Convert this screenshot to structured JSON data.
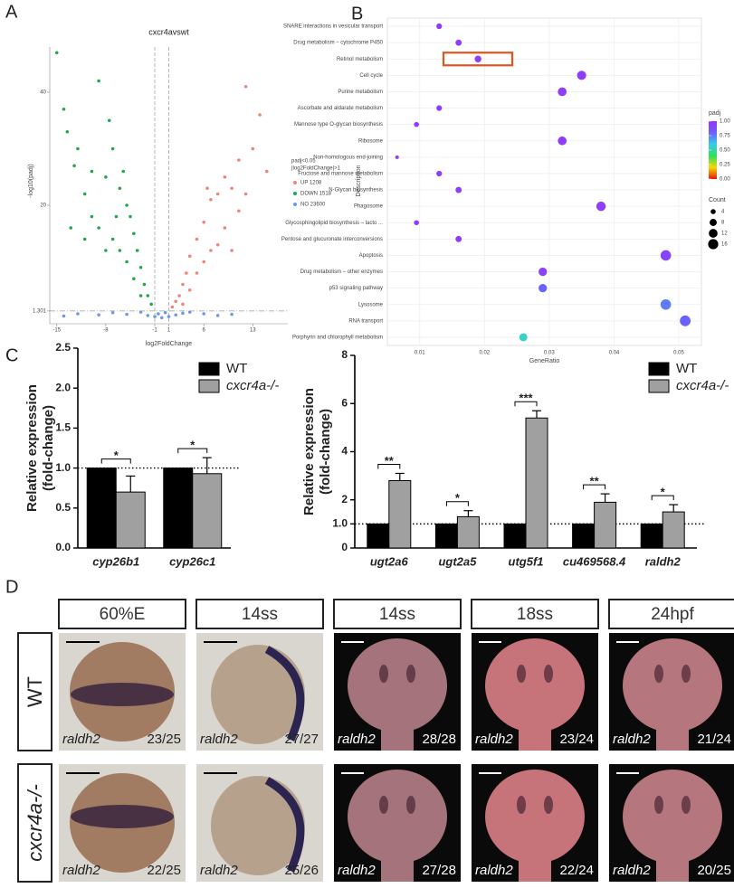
{
  "panels": [
    "A",
    "B",
    "C",
    "D"
  ],
  "chart_data": [
    {
      "type": "volcano",
      "title": "cxcr4avswt",
      "xlabel": "log2FoldChange",
      "ylabel": "-log10(padj)",
      "legend_title": [
        "padj<0.05",
        "|log2FoldChange|>1"
      ],
      "xlim": [
        -16,
        18
      ],
      "ylim": [
        0,
        48
      ],
      "xticks": [
        -15,
        -8,
        -1,
        1,
        6,
        13
      ],
      "yticks": [
        1.301,
        20,
        40
      ],
      "series": [
        {
          "name": "UP 1208",
          "color": "#f0837a",
          "x": [
            12,
            14,
            15,
            13,
            10,
            9,
            8,
            7,
            6,
            5,
            4,
            3.5,
            3,
            2.5,
            2,
            1.5,
            11,
            9,
            7,
            5,
            4,
            6,
            8,
            10,
            12,
            3,
            11,
            6.5
          ],
          "y": [
            41,
            36,
            26,
            30,
            23,
            25,
            22,
            21,
            17,
            14,
            11,
            8,
            6,
            4,
            3,
            2,
            19,
            16,
            12,
            8,
            5,
            10,
            13,
            12,
            22,
            2.5,
            28,
            23
          ]
        },
        {
          "name": "DOWN 1518",
          "color": "#22a84a",
          "x": [
            -15,
            -14,
            -13.5,
            -12,
            -10,
            -9,
            -8,
            -7,
            -11,
            -12.5,
            -6,
            -5,
            -4.5,
            -4,
            -3.5,
            -3,
            -2.5,
            -2,
            -1.5,
            -9,
            -10,
            -7,
            -6,
            -5,
            -8,
            -11,
            -13,
            -4,
            -3,
            -6.5,
            -5.5,
            -7.5
          ],
          "y": [
            47,
            37,
            33,
            30,
            26,
            42,
            25,
            30,
            22,
            27,
            23,
            20,
            18,
            15,
            12,
            9,
            6,
            4,
            2.5,
            16,
            18,
            14,
            12,
            10,
            12,
            14,
            16,
            7,
            4,
            18,
            26,
            35
          ]
        },
        {
          "name": "NO 23600",
          "color": "#6a98ea",
          "x": [
            -12,
            -9,
            -7,
            -5,
            -3,
            -2,
            -1,
            0,
            1,
            2,
            3,
            4,
            6,
            8,
            -14,
            10,
            -0.5,
            0.5
          ],
          "y": [
            0.8,
            0.6,
            1.0,
            0.7,
            1.1,
            0.5,
            0.3,
            0.1,
            0.3,
            0.6,
            0.9,
            1.1,
            0.8,
            0.5,
            0.4,
            0.7,
            0.8,
            1.0
          ]
        }
      ]
    },
    {
      "type": "dot",
      "xlabel": "GeneRatio",
      "ylabel": "Description",
      "color_title": "padj",
      "size_title": "Count",
      "categories": [
        "SNARE interactions in vesicular transport",
        "Drug metabolism – cytochrome P450",
        "Retinol metabolism",
        "Cell cycle",
        "Purine metabolism",
        "Ascorbate and aldarate metabolism",
        "Mannose type O-glycan biosynthesis",
        "Ribosome",
        "Non-homologous end-joining",
        "Fructose and mannose metabolism",
        "N-Glycan biosynthesis",
        "Phagosome",
        "Glycosphingolipid biosynthesis – lacto ...",
        "Pentose and glucuronate interconversions",
        "Apoptosis",
        "Drug metabolism – other enzymes",
        "p53 signaling pathway",
        "Lysosome",
        "RNA transport",
        "Porphyrin and chlorophyll metabolism"
      ],
      "highlight": "Retinol metabolism",
      "values": [
        0.013,
        0.016,
        0.019,
        0.035,
        0.032,
        0.013,
        0.0095,
        0.032,
        0.0065,
        0.013,
        0.016,
        0.038,
        0.0095,
        0.016,
        0.048,
        0.029,
        0.029,
        0.048,
        0.051,
        0.026
      ],
      "sizes": [
        5,
        6,
        7,
        13,
        12,
        5,
        4,
        12,
        2,
        5,
        6,
        14,
        4,
        6,
        17,
        11,
        11,
        17,
        18,
        10
      ],
      "padj": [
        0.96,
        0.95,
        0.95,
        0.95,
        0.95,
        0.95,
        0.95,
        0.95,
        0.95,
        0.95,
        0.95,
        0.95,
        0.95,
        0.95,
        0.92,
        0.93,
        0.8,
        0.75,
        0.8,
        0.55
      ],
      "xlim": [
        0.005,
        0.0535
      ],
      "xticks": [
        0.01,
        0.02,
        0.03,
        0.04,
        0.05
      ],
      "colormap": [
        "#e8140b",
        "#f5d800",
        "#2ee05a",
        "#37cde8",
        "#6a62ff",
        "#9b30f5"
      ],
      "clim": [
        0,
        1
      ],
      "cticks": [
        {
          "value": 1,
          "label": "1.00"
        },
        0.75,
        {
          "value": 0.5,
          "label": "0.50"
        },
        0.25,
        {
          "value": 0,
          "label": "0.00"
        }
      ],
      "size_ticks": [
        4,
        8,
        12,
        16
      ]
    },
    {
      "type": "bar",
      "ylabel": [
        "Relative expression",
        "(fold-change)"
      ],
      "categories": [
        "cyp26b1",
        "cyp26c1"
      ],
      "series": [
        {
          "name": "WT",
          "color": "#000000",
          "values": [
            1.0,
            1.0
          ],
          "errors": [
            0,
            0
          ]
        },
        {
          "name": "cxcr4a-/-",
          "color": "#a0a0a0",
          "values": [
            0.7,
            0.93
          ],
          "errors": [
            0.2,
            0.2
          ]
        }
      ],
      "significance": [
        "*",
        "*"
      ],
      "hline": 1,
      "ylim": [
        0,
        2.5
      ],
      "yticks": [
        {
          "value": 0,
          "label": "0.0"
        },
        0.5,
        {
          "value": 1,
          "label": "1.0"
        },
        1.5,
        {
          "value": 2,
          "label": "2.0"
        },
        2.5
      ]
    },
    {
      "type": "bar",
      "ylabel": [
        "Relative expression",
        "(fold-change)"
      ],
      "categories": [
        "ugt2a6",
        "ugt2a5",
        "utg5f1",
        "cu469568.4",
        "raldh2"
      ],
      "series": [
        {
          "name": "WT",
          "color": "#000000",
          "values": [
            1,
            1,
            1,
            1,
            1
          ],
          "errors": [
            0,
            0,
            0,
            0,
            0
          ]
        },
        {
          "name": "cxcr4a-/-",
          "color": "#a0a0a0",
          "values": [
            2.8,
            1.3,
            5.4,
            1.9,
            1.5
          ],
          "errors": [
            0.3,
            0.25,
            0.3,
            0.35,
            0.3
          ]
        }
      ],
      "significance": [
        "**",
        "*",
        "***",
        "**",
        "*"
      ],
      "hline": 1,
      "ylim": [
        0,
        8
      ],
      "yticks": [
        0,
        {
          "value": 1,
          "label": "1.0"
        },
        2,
        4,
        6,
        8
      ]
    }
  ],
  "in_situ": {
    "columns": [
      "60%E",
      "14ss",
      "14ss",
      "18ss",
      "24hpf"
    ],
    "rows": [
      "WT",
      "cxcr4a-/-"
    ],
    "cells": [
      [
        {
          "gene": "raldh2",
          "count": "23/25"
        },
        {
          "gene": "raldh2",
          "count": "27/27"
        },
        {
          "gene": "raldh2",
          "count": "28/28"
        },
        {
          "gene": "raldh2",
          "count": "23/24"
        },
        {
          "gene": "raldh2",
          "count": "21/24"
        }
      ],
      [
        {
          "gene": "raldh2",
          "count": "22/25"
        },
        {
          "gene": "raldh2",
          "count": "25/26"
        },
        {
          "gene": "raldh2",
          "count": "27/28"
        },
        {
          "gene": "raldh2",
          "count": "22/24"
        },
        {
          "gene": "raldh2",
          "count": "20/25"
        }
      ]
    ]
  }
}
